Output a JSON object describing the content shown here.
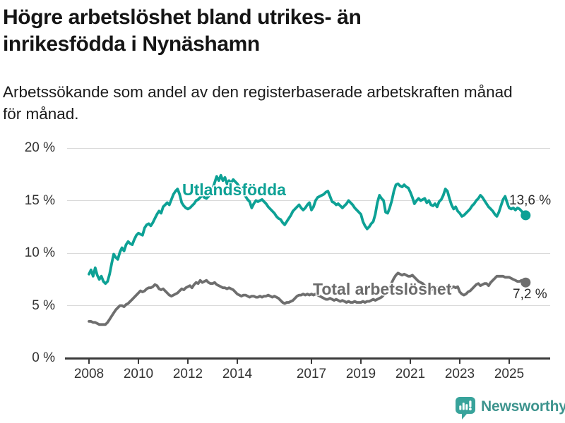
{
  "header": {
    "title": "Högre arbetslöshet bland utrikes- än inrikesfödda i Nynäshamn",
    "title_lines": [
      "Högre arbetslöshet bland utrikes- än",
      "inrikesfödda i Nynäshamn"
    ],
    "subtitle": "Arbetssökande som andel av den registerbaserade arbetskraften månad för månad.",
    "subtitle_lines": [
      "Arbetssökande som andel av den registerbaserade arbetskraften månad",
      "för månad."
    ]
  },
  "chart_data": {
    "type": "line",
    "title": "Högre arbetslöshet bland utrikes- än inrikesfödda i Nynäshamn",
    "xlabel": "",
    "ylabel": "",
    "x_unit": "month",
    "x_start_year": 2008,
    "x_end": "2025-09",
    "ylim": [
      0,
      20
    ],
    "grid": "horizontal",
    "legend_position": "inline",
    "y_ticks": [
      "20 %",
      "15 %",
      "10 %",
      "5 %",
      "0 %"
    ],
    "y_tick_values": [
      20,
      15,
      10,
      5,
      0
    ],
    "x_ticks": [
      "2008",
      "2010",
      "2012",
      "2014",
      "2017",
      "2019",
      "2021",
      "2023",
      "2025"
    ],
    "x_tick_values": [
      2008,
      2010,
      2012,
      2014,
      2017,
      2019,
      2021,
      2023,
      2025
    ],
    "series": [
      {
        "name": "Utlandsfödda",
        "color": "#0da195",
        "end_value": 13.6,
        "end_label": "13,6 %",
        "values": [
          8.0,
          8.4,
          7.8,
          8.6,
          7.9,
          7.5,
          7.8,
          7.3,
          7.1,
          7.3,
          8.0,
          9.0,
          9.9,
          9.6,
          9.4,
          10.1,
          10.5,
          10.2,
          10.8,
          11.1,
          10.9,
          10.8,
          11.3,
          11.7,
          11.9,
          11.8,
          11.7,
          12.4,
          12.7,
          12.8,
          12.6,
          12.9,
          13.3,
          13.7,
          14.0,
          13.8,
          14.4,
          14.6,
          14.8,
          14.6,
          15.1,
          15.6,
          15.9,
          16.1,
          15.6,
          14.8,
          14.5,
          14.3,
          14.2,
          14.3,
          14.5,
          14.7,
          15.0,
          15.1,
          15.3,
          15.5,
          15.3,
          15.2,
          15.4,
          15.6,
          16.1,
          16.7,
          17.3,
          16.9,
          17.4,
          16.9,
          17.2,
          16.6,
          16.9,
          16.7,
          17.0,
          16.8,
          16.6,
          16.3,
          16.0,
          15.7,
          15.4,
          15.1,
          14.9,
          14.3,
          14.7,
          15.0,
          14.9,
          15.0,
          15.1,
          14.9,
          14.7,
          14.4,
          14.2,
          14.0,
          13.8,
          13.5,
          13.3,
          13.2,
          12.9,
          12.7,
          13.0,
          13.3,
          13.6,
          14.0,
          14.2,
          14.4,
          14.6,
          14.3,
          14.1,
          14.3,
          14.6,
          14.8,
          14.1,
          14.4,
          15.0,
          15.3,
          15.4,
          15.5,
          15.6,
          15.8,
          15.9,
          15.4,
          14.9,
          14.8,
          14.6,
          14.7,
          14.5,
          14.3,
          14.5,
          14.7,
          15.0,
          14.8,
          14.6,
          14.3,
          14.1,
          13.9,
          13.7,
          13.0,
          12.6,
          12.3,
          12.5,
          12.8,
          13.0,
          13.7,
          14.8,
          15.5,
          15.2,
          15.0,
          13.9,
          13.8,
          14.3,
          15.0,
          15.9,
          16.5,
          16.6,
          16.4,
          16.3,
          16.5,
          16.3,
          16.2,
          15.8,
          15.3,
          14.7,
          15.0,
          15.2,
          15.0,
          15.1,
          15.2,
          14.8,
          15.0,
          14.6,
          14.5,
          14.7,
          14.4,
          14.9,
          15.1,
          15.5,
          16.1,
          15.9,
          15.2,
          14.6,
          14.2,
          14.4,
          14.0,
          13.8,
          13.5,
          13.6,
          13.8,
          14.0,
          14.2,
          14.5,
          14.7,
          15.0,
          15.2,
          15.5,
          15.3,
          15.0,
          14.7,
          14.4,
          14.2,
          14.0,
          13.7,
          13.5,
          13.9,
          14.5,
          15.1,
          15.4,
          14.8,
          14.3,
          14.2,
          14.3,
          14.1,
          14.3,
          14.2,
          14.0,
          13.7,
          13.6
        ]
      },
      {
        "name": "Total arbetslöshet",
        "color": "#6e6e6e",
        "end_value": 7.2,
        "end_label": "7,2 %",
        "values": [
          3.5,
          3.5,
          3.4,
          3.4,
          3.3,
          3.2,
          3.2,
          3.2,
          3.2,
          3.4,
          3.7,
          4.0,
          4.3,
          4.6,
          4.8,
          5.0,
          5.0,
          4.9,
          5.1,
          5.2,
          5.4,
          5.6,
          5.8,
          6.0,
          6.2,
          6.4,
          6.3,
          6.4,
          6.6,
          6.7,
          6.7,
          6.8,
          7.0,
          6.9,
          6.6,
          6.5,
          6.6,
          6.4,
          6.2,
          6.0,
          5.9,
          6.0,
          6.1,
          6.2,
          6.4,
          6.6,
          6.5,
          6.7,
          6.8,
          6.9,
          6.7,
          7.0,
          7.2,
          7.1,
          7.4,
          7.2,
          7.3,
          7.4,
          7.2,
          7.1,
          7.1,
          7.2,
          7.0,
          6.9,
          6.8,
          6.7,
          6.7,
          6.6,
          6.7,
          6.6,
          6.5,
          6.3,
          6.1,
          6.0,
          5.9,
          6.0,
          6.0,
          5.9,
          5.8,
          5.9,
          5.9,
          5.8,
          5.8,
          5.9,
          5.8,
          5.9,
          5.9,
          6.0,
          5.9,
          5.8,
          5.9,
          5.8,
          5.7,
          5.5,
          5.3,
          5.2,
          5.3,
          5.3,
          5.4,
          5.5,
          5.7,
          5.9,
          6.0,
          6.0,
          6.1,
          6.0,
          6.1,
          6.0,
          6.1,
          6.0,
          6.1,
          6.0,
          5.9,
          5.8,
          5.7,
          5.6,
          5.6,
          5.7,
          5.6,
          5.5,
          5.6,
          5.5,
          5.4,
          5.5,
          5.4,
          5.3,
          5.4,
          5.3,
          5.3,
          5.4,
          5.3,
          5.3,
          5.3,
          5.4,
          5.3,
          5.4,
          5.4,
          5.5,
          5.6,
          5.5,
          5.6,
          5.7,
          5.8,
          6.0,
          6.2,
          6.3,
          6.6,
          7.2,
          7.6,
          7.9,
          8.1,
          8.0,
          7.9,
          8.0,
          7.9,
          7.8,
          7.8,
          7.9,
          7.7,
          7.5,
          7.3,
          7.2,
          7.1,
          6.9,
          6.7,
          6.6,
          6.5,
          6.6,
          6.6,
          6.7,
          6.8,
          6.7,
          6.6,
          6.7,
          6.8,
          6.6,
          6.7,
          6.8,
          6.7,
          6.8,
          6.3,
          6.1,
          6.0,
          6.1,
          6.3,
          6.4,
          6.6,
          6.8,
          7.0,
          7.1,
          6.9,
          7.0,
          7.1,
          7.1,
          6.9,
          7.2,
          7.4,
          7.6,
          7.8,
          7.8,
          7.8,
          7.8,
          7.7,
          7.7,
          7.7,
          7.6,
          7.5,
          7.4,
          7.3,
          7.3,
          7.4,
          7.3,
          7.2
        ]
      }
    ]
  },
  "footer": {
    "brand": "Newsworthy",
    "brand_color": "#3e948e",
    "logo_icon": "newsworthy-speech-bubble-bar-chart-icon",
    "icon_color": "#38a39b"
  }
}
